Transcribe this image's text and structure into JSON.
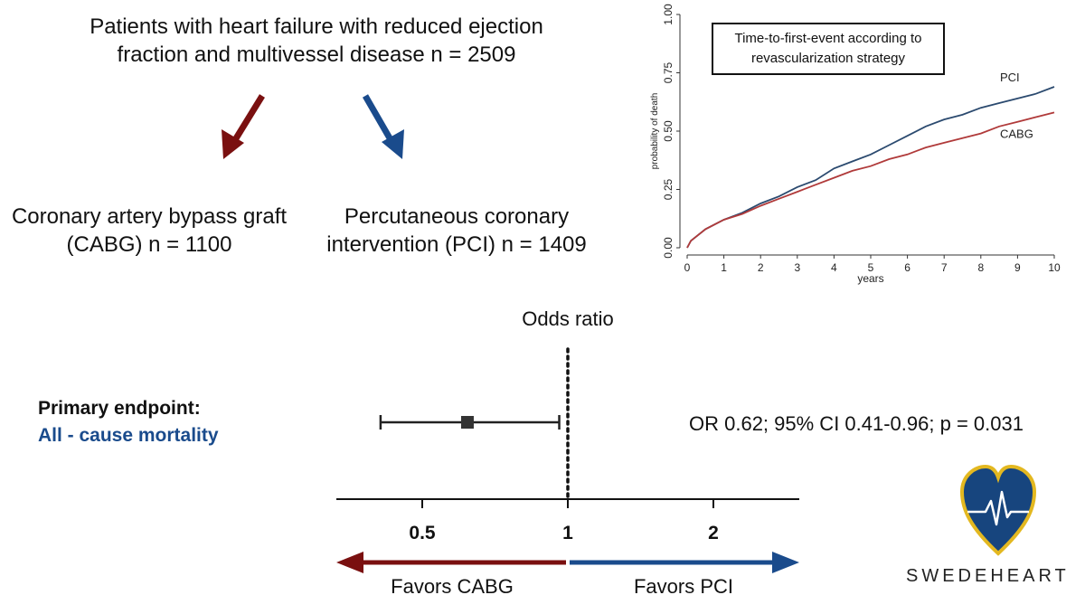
{
  "header": {
    "title": "Patients with heart failure with reduced ejection fraction and multivessel disease n = 2509",
    "title_line1": "Patients with heart failure with reduced ejection",
    "title_line2": "fraction and multivessel disease n = 2509"
  },
  "arms": {
    "cabg_line1": "Coronary artery bypass graft",
    "cabg_line2": "(CABG) n = 1100",
    "pci_line1": "Percutaneous coronary",
    "pci_line2": "intervention (PCI) n = 1409"
  },
  "colors": {
    "cabg": "#7a1010",
    "pci": "#1a4b8c",
    "km_pci": "#2b4a6f",
    "km_cabg": "#b03a3a",
    "endpoint_sub": "#1a4b8c",
    "logo_heart_fill": "#17457e",
    "logo_heart_border": "#e3b820"
  },
  "chart_data": [
    {
      "type": "line",
      "title": "Time-to-first-event according to revascularization strategy",
      "title_line1": "Time-to-first-event according to",
      "title_line2": "revascularization strategy",
      "xlabel": "years",
      "ylabel": "probability of death",
      "xlim": [
        0,
        10
      ],
      "ylim": [
        0,
        1
      ],
      "xticks": [
        "0",
        "1",
        "2",
        "3",
        "4",
        "5",
        "6",
        "7",
        "8",
        "9",
        "10"
      ],
      "yticks": [
        "0.00",
        "0.25",
        "0.50",
        "0.75",
        "1.00"
      ],
      "x": [
        0,
        0.1,
        0.5,
        1,
        1.5,
        2,
        2.5,
        3,
        3.5,
        4,
        4.5,
        5,
        5.5,
        6,
        6.5,
        7,
        7.5,
        8,
        8.5,
        9,
        9.5,
        10
      ],
      "series": [
        {
          "name": "PCI",
          "values": [
            0.0,
            0.03,
            0.08,
            0.12,
            0.15,
            0.19,
            0.22,
            0.26,
            0.29,
            0.34,
            0.37,
            0.4,
            0.44,
            0.48,
            0.52,
            0.55,
            0.57,
            0.6,
            0.62,
            0.64,
            0.66,
            0.69
          ]
        },
        {
          "name": "CABG",
          "values": [
            0.0,
            0.03,
            0.08,
            0.12,
            0.145,
            0.18,
            0.21,
            0.24,
            0.27,
            0.3,
            0.33,
            0.35,
            0.38,
            0.4,
            0.43,
            0.45,
            0.47,
            0.49,
            0.52,
            0.54,
            0.56,
            0.58
          ]
        }
      ],
      "grid": false,
      "legend": "inline labels at line ends"
    },
    {
      "type": "forest",
      "title": "Odds ratio",
      "xscale": "log",
      "xticks": [
        0.5,
        1,
        2
      ],
      "xtick_labels": [
        "0.5",
        "1",
        "2"
      ],
      "xlim": [
        0.33,
        2.8
      ],
      "reference": 1,
      "estimates": [
        {
          "label_line1": "Primary endpoint:",
          "label_line2": "All - cause mortality",
          "or": 0.62,
          "ci_low": 0.41,
          "ci_high": 0.96,
          "p": 0.031,
          "text": "OR 0.62; 95% CI 0.41-0.96; p = 0.031"
        }
      ],
      "left_arrow_label": "Favors CABG",
      "right_arrow_label": "Favors PCI"
    }
  ],
  "logo": {
    "text": "SWEDEHEART"
  }
}
